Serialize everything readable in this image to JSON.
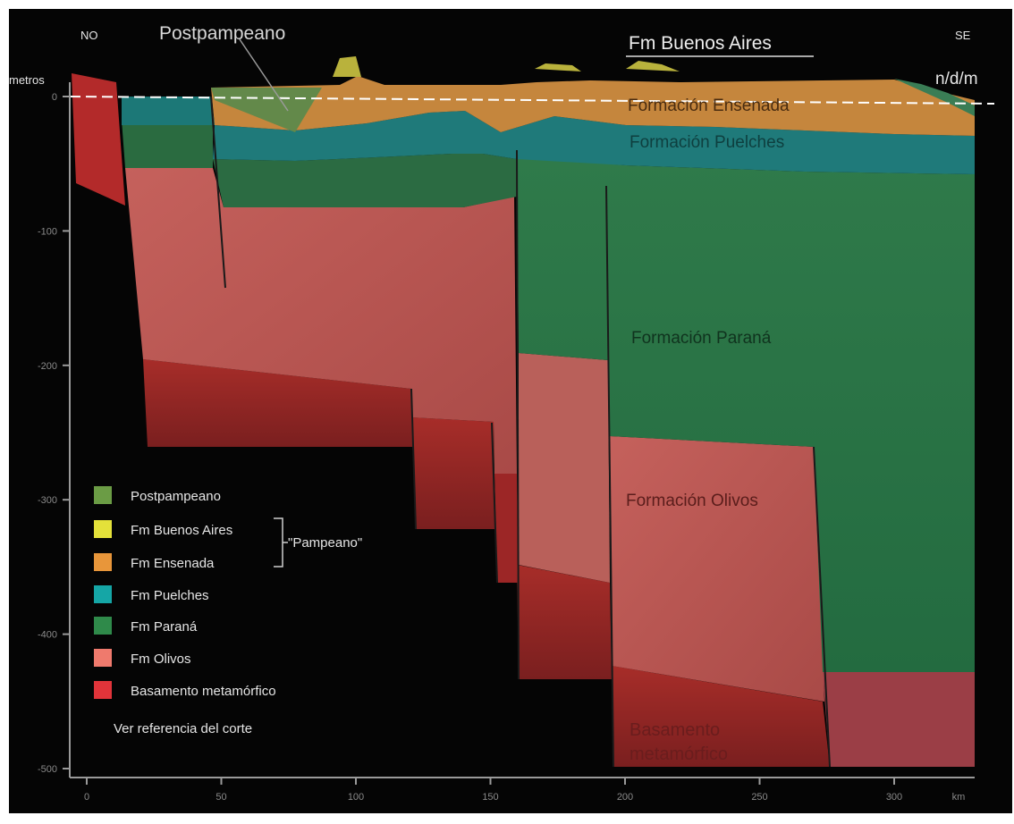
{
  "labels": {
    "no": "NO",
    "se": "SE",
    "metros": "metros",
    "ndm": "n/d/m",
    "postpampeano": "Postpampeano",
    "fm_buenos_aires": "Fm  Buenos Aires",
    "formacion_ensenada": "Formación Ensenada",
    "formacion_puelches": "Formación Puelches",
    "formacion_parana": "Formación Paraná",
    "formacion_olivos": "Formación Olivos",
    "basamento_1": "Basamento",
    "basamento_2": "metamórfico"
  },
  "legend": {
    "postpampeano": "Postpampeano",
    "buenos_aires": "Fm Buenos Aires",
    "ensenada": "Fm Ensenada",
    "puelches": "Fm Puelches",
    "parana": "Fm Paraná",
    "olivos": "Fm Olivos",
    "basamento": "Basamento metamórfico",
    "pampeano": "\"Pampeano\"",
    "ver_referencia": "Ver referencia del corte"
  },
  "axes": {
    "y_unit": "metros",
    "y_ticks": [
      "0",
      "-100",
      "-200",
      "-300",
      "-400",
      "-500"
    ],
    "x_unit": "km",
    "x_ticks": [
      "0",
      "50",
      "100",
      "150",
      "200",
      "250",
      "300"
    ],
    "x_unit_label": "km"
  },
  "colors": {
    "postpampeano": "#6b9c45",
    "buenos_aires": "#e4e13a",
    "ensenada": "#e8963a",
    "puelches": "#15a6a6",
    "parana": "#2f8a4a",
    "olivos": "#ef7a6d",
    "basamento": "#e1343a"
  }
}
